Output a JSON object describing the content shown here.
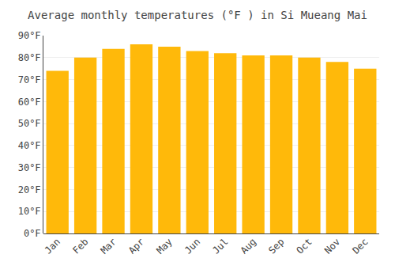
{
  "chart_data": {
    "type": "bar",
    "title": "Average monthly temperatures (°F ) in Si Mueang Mai",
    "categories": [
      "Jan",
      "Feb",
      "Mar",
      "Apr",
      "May",
      "Jun",
      "Jul",
      "Aug",
      "Sep",
      "Oct",
      "Nov",
      "Dec"
    ],
    "values": [
      74,
      80,
      84,
      86,
      85,
      83,
      82,
      81,
      81,
      80,
      78,
      75
    ],
    "color": "#FFB90A",
    "ylim": [
      0,
      90
    ],
    "yticks": [
      {
        "value": 0,
        "label": "0°F"
      },
      {
        "value": 10,
        "label": "10°F"
      },
      {
        "value": 20,
        "label": "20°F"
      },
      {
        "value": 30,
        "label": "30°F"
      },
      {
        "value": 40,
        "label": "40°F"
      },
      {
        "value": 50,
        "label": "50°F"
      },
      {
        "value": 60,
        "label": "60°F"
      },
      {
        "value": 70,
        "label": "70°F"
      },
      {
        "value": 80,
        "label": "80°F"
      },
      {
        "value": 90,
        "label": "90°F"
      }
    ],
    "grid": true
  }
}
